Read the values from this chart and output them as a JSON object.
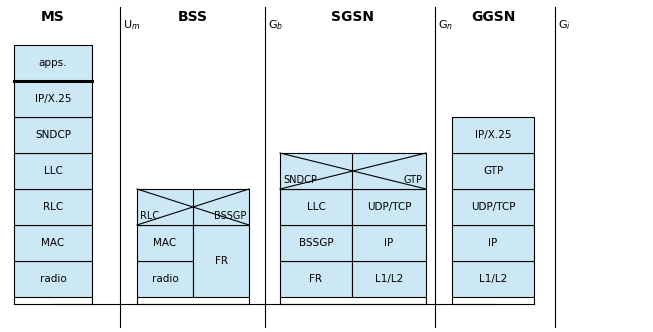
{
  "bg_color": "#ffffff",
  "box_fill": "#cce8f4",
  "box_edge": "#000000",
  "ms_label": "MS",
  "bss_label": "BSS",
  "sgsn_label": "SGSN",
  "ggsn_label": "GGSN",
  "um_label": "U_m",
  "gb_label": "G_b",
  "gn_label": "G_n",
  "gi_label": "G_i",
  "ms_layers_top_to_bot": [
    "apps.",
    "IP/X.25",
    "SNDCP",
    "LLC",
    "RLC",
    "MAC",
    "radio"
  ],
  "bss_left_layers_top_to_bot": [
    "RLC",
    "MAC",
    "radio"
  ],
  "bss_right_label": "BSSGP",
  "bss_fr_label": "FR",
  "sgsn_left_layers_top_to_bot": [
    "SNDCP",
    "LLC",
    "BSSGP",
    "FR"
  ],
  "sgsn_right_layers_top_to_bot": [
    "GTP",
    "UDP/TCP",
    "IP",
    "L1/L2"
  ],
  "sgsn_cross_left": "SNDCP",
  "sgsn_cross_right": "GTP",
  "ggsn_layers_top_to_bot": [
    "IP/X.25",
    "GTP",
    "UDP/TCP",
    "IP",
    "L1/L2"
  ],
  "fig_w": 6.53,
  "fig_h": 3.32,
  "dpi": 100
}
